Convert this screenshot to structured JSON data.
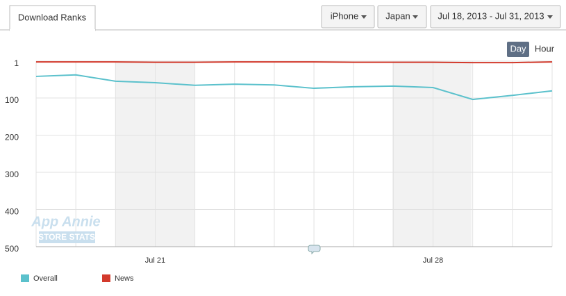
{
  "header": {
    "tab": "Download Ranks",
    "device": "iPhone",
    "country": "Japan",
    "date_range": "Jul 18, 2013 - Jul 31, 2013",
    "granularity": [
      "Day",
      "Hour"
    ],
    "watermark": [
      "App Annie",
      "STORE STATS"
    ]
  },
  "chart_data": {
    "type": "line",
    "categories": [
      null,
      null,
      null,
      "Jul 21",
      null,
      null,
      null,
      null,
      null,
      null,
      "Jul 28",
      null,
      null,
      null
    ],
    "series": [
      {
        "name": "Overall",
        "color": "#5bc1cc",
        "values": [
          42,
          38,
          55,
          59,
          66,
          63,
          65,
          74,
          70,
          68,
          72,
          104,
          93,
          81
        ]
      },
      {
        "name": "News",
        "color": "#d33a2c",
        "values": [
          3,
          3,
          3,
          4,
          4,
          3,
          3,
          3,
          4,
          4,
          4,
          5,
          5,
          3
        ]
      }
    ],
    "ylim": [
      1,
      500
    ],
    "yticks": [
      1,
      100,
      200,
      300,
      400,
      500
    ],
    "y_reversed": true,
    "grid": true,
    "legend": "bottom-left"
  }
}
